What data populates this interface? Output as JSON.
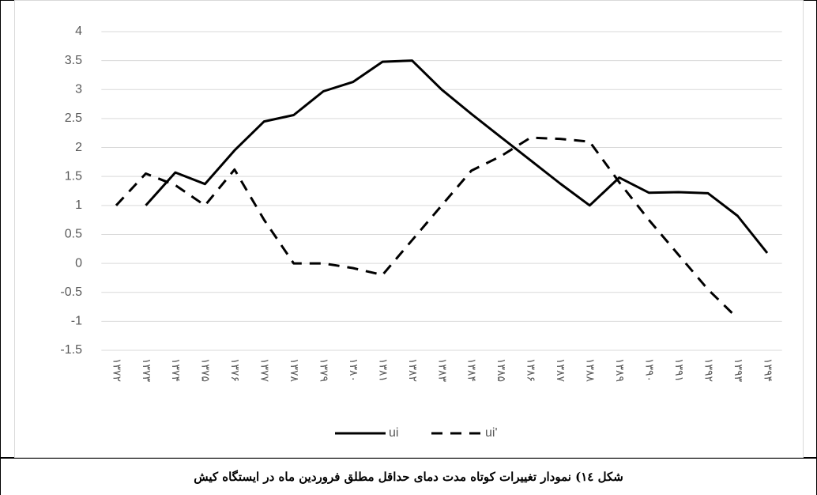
{
  "chart_data": {
    "type": "line",
    "categories": [
      "۱۳۷۲",
      "۱۳۷۳",
      "۱۳۷۴",
      "۱۳۷۵",
      "۱۳۷۶",
      "۱۳۷۷",
      "۱۳۷۸",
      "۱۳۷۹",
      "۱۳۸۰",
      "۱۳۸۱",
      "۱۳۸۲",
      "۱۳۸۳",
      "۱۳۸۴",
      "۱۳۸۵",
      "۱۳۸۶",
      "۱۳۸۷",
      "۱۳۸۸",
      "۱۳۸۹",
      "۱۳۹۰",
      "۱۳۹۱",
      "۱۳۹۲",
      "۱۳۹۳",
      "۱۳۹۴"
    ],
    "series": [
      {
        "name": "ui",
        "color": "#000000",
        "dash": false,
        "values": [
          null,
          1.0,
          1.57,
          1.37,
          1.95,
          2.45,
          2.56,
          2.97,
          3.13,
          3.48,
          3.5,
          3.0,
          2.58,
          2.18,
          1.78,
          1.38,
          1.0,
          1.48,
          1.22,
          1.23,
          1.21,
          0.82,
          0.18
        ]
      },
      {
        "name": "ui'",
        "color": "#000000",
        "dash": true,
        "values": [
          1.0,
          1.55,
          1.35,
          1.0,
          1.62,
          0.75,
          0.0,
          0.0,
          -0.08,
          -0.2,
          0.4,
          1.0,
          1.6,
          1.85,
          2.17,
          2.15,
          2.1,
          1.4,
          0.75,
          0.15,
          -0.45,
          -0.95,
          null
        ]
      }
    ],
    "ylim": [
      -1.5,
      4
    ],
    "yticks": [
      -1.5,
      -1,
      -0.5,
      0,
      0.5,
      1,
      1.5,
      2,
      2.5,
      3,
      3.5,
      4
    ],
    "grid": true,
    "legend": "bottom"
  },
  "caption": "شکل ۱٤) نمودار تغییرات کوتاه مدت دمای حداقل مطلق فروردین ماه در ایستگاه کیش"
}
